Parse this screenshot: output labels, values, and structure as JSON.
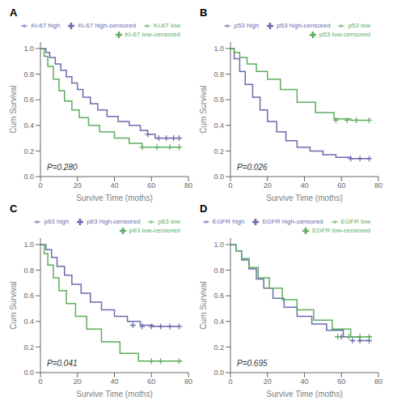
{
  "chart_data": [
    {
      "type": "line",
      "title": "A",
      "annotations": [
        "P=0.280"
      ],
      "xlabel": "Survive Time (moths)",
      "ylabel": "Cum Survival",
      "xlim": [
        0,
        80
      ],
      "ylim": [
        0.0,
        1.05
      ],
      "xticks": [
        0,
        20,
        40,
        60,
        80
      ],
      "yticks": [
        {
          "value": 0.0,
          "label": "0.0"
        },
        0.2,
        0.4,
        0.6,
        0.8,
        {
          "value": 1.0,
          "label": "1.0"
        }
      ],
      "legend": "upper right",
      "grid": false,
      "series": [
        {
          "name": "Ki-67 high",
          "type": "step",
          "color": "#6B6BAF",
          "x": [
            0,
            3,
            5,
            8,
            11,
            14,
            17,
            20,
            23,
            27,
            31,
            36,
            42,
            48,
            54,
            58,
            62,
            75
          ],
          "values": [
            1.0,
            0.97,
            0.93,
            0.88,
            0.83,
            0.78,
            0.73,
            0.68,
            0.62,
            0.57,
            0.52,
            0.47,
            0.43,
            0.4,
            0.36,
            0.33,
            0.3,
            0.3
          ]
        },
        {
          "name": "Ki-67 low",
          "type": "step",
          "color": "#5DAD5D",
          "x": [
            0,
            2,
            4,
            7,
            10,
            13,
            17,
            21,
            26,
            32,
            40,
            48,
            55,
            75
          ],
          "values": [
            1.0,
            0.94,
            0.86,
            0.76,
            0.67,
            0.59,
            0.52,
            0.46,
            0.4,
            0.35,
            0.3,
            0.26,
            0.23,
            0.23
          ]
        },
        {
          "name": "Ki-67 high-censored",
          "type": "scatter",
          "marker": "+",
          "color": "#6B6BAF",
          "x": [
            58,
            64,
            68,
            72,
            75
          ],
          "values": [
            0.33,
            0.3,
            0.3,
            0.3,
            0.3
          ]
        },
        {
          "name": "Ki-67 low-censored",
          "type": "scatter",
          "marker": "+",
          "color": "#5DAD5D",
          "x": [
            55,
            63,
            70,
            75
          ],
          "values": [
            0.23,
            0.23,
            0.23,
            0.23
          ]
        }
      ]
    },
    {
      "type": "line",
      "title": "B",
      "annotations": [
        "P=0.026"
      ],
      "xlabel": "Survive Time (moths)",
      "ylabel": "Cum Survival",
      "xlim": [
        0,
        80
      ],
      "ylim": [
        0.0,
        1.05
      ],
      "xticks": [
        0,
        20,
        40,
        60,
        80
      ],
      "yticks": [
        {
          "value": 0.0,
          "label": "0.0"
        },
        0.2,
        0.4,
        0.6,
        0.8,
        {
          "value": 1.0,
          "label": "1.0"
        }
      ],
      "legend": "upper right",
      "grid": false,
      "series": [
        {
          "name": "p53 high",
          "type": "step",
          "color": "#6B6BAF",
          "x": [
            0,
            2,
            5,
            8,
            12,
            16,
            20,
            25,
            30,
            36,
            43,
            50,
            57,
            65,
            75
          ],
          "values": [
            1.0,
            0.92,
            0.82,
            0.72,
            0.62,
            0.52,
            0.43,
            0.35,
            0.28,
            0.23,
            0.2,
            0.17,
            0.15,
            0.14,
            0.14
          ]
        },
        {
          "name": "p53 low",
          "type": "step",
          "color": "#5DAD5D",
          "x": [
            0,
            2,
            5,
            9,
            14,
            20,
            27,
            36,
            46,
            56,
            65,
            75
          ],
          "values": [
            1.0,
            0.97,
            0.93,
            0.88,
            0.82,
            0.76,
            0.68,
            0.58,
            0.5,
            0.45,
            0.44,
            0.44
          ]
        },
        {
          "name": "p53 high-censored",
          "type": "scatter",
          "marker": "+",
          "color": "#6B6BAF",
          "x": [
            65,
            70,
            75
          ],
          "values": [
            0.14,
            0.14,
            0.14
          ]
        },
        {
          "name": "p53 low-censored",
          "type": "scatter",
          "marker": "+",
          "color": "#5DAD5D",
          "x": [
            57,
            63,
            68,
            75
          ],
          "values": [
            0.44,
            0.44,
            0.44,
            0.44
          ]
        }
      ]
    },
    {
      "type": "line",
      "title": "C",
      "annotations": [
        "P=0.041"
      ],
      "xlabel": "Survive Time (moths)",
      "ylabel": "Cum Survival",
      "xlim": [
        0,
        80
      ],
      "ylim": [
        0.0,
        1.05
      ],
      "xticks": [
        0,
        20,
        40,
        60,
        80
      ],
      "yticks": [
        {
          "value": 0.0,
          "label": "0.0"
        },
        0.2,
        0.4,
        0.6,
        0.8,
        {
          "value": 1.0,
          "label": "1.0"
        }
      ],
      "legend": "upper right",
      "grid": false,
      "series": [
        {
          "name": "p63 high",
          "type": "step",
          "color": "#6B6BAF",
          "x": [
            0,
            3,
            6,
            9,
            13,
            17,
            22,
            27,
            33,
            40,
            47,
            54,
            61,
            75
          ],
          "values": [
            1.0,
            0.96,
            0.9,
            0.83,
            0.76,
            0.69,
            0.62,
            0.55,
            0.49,
            0.44,
            0.4,
            0.37,
            0.36,
            0.36
          ]
        },
        {
          "name": "p63 low",
          "type": "step",
          "color": "#5DAD5D",
          "x": [
            0,
            2,
            4,
            7,
            10,
            14,
            19,
            25,
            33,
            43,
            53,
            75
          ],
          "values": [
            1.0,
            0.93,
            0.84,
            0.74,
            0.64,
            0.54,
            0.44,
            0.34,
            0.24,
            0.15,
            0.09,
            0.09
          ]
        },
        {
          "name": "p63 high-censored",
          "type": "scatter",
          "marker": "+",
          "color": "#6B6BAF",
          "x": [
            50,
            55,
            60,
            65,
            70,
            75
          ],
          "values": [
            0.37,
            0.36,
            0.36,
            0.36,
            0.36,
            0.36
          ]
        },
        {
          "name": "p63 low-censored",
          "type": "scatter",
          "marker": "+",
          "color": "#5DAD5D",
          "x": [
            60,
            65,
            75
          ],
          "values": [
            0.09,
            0.09,
            0.09
          ]
        }
      ]
    },
    {
      "type": "line",
      "title": "D",
      "annotations": [
        "P=0.695"
      ],
      "xlabel": "Survive Time (moths)",
      "ylabel": "Cum Survival",
      "xlim": [
        0,
        80
      ],
      "ylim": [
        0.0,
        1.05
      ],
      "xticks": [
        0,
        20,
        40,
        60,
        80
      ],
      "yticks": [
        {
          "value": 0.0,
          "label": "0.0"
        },
        0.2,
        0.4,
        0.6,
        0.8,
        {
          "value": 1.0,
          "label": "1.0"
        }
      ],
      "legend": "upper right",
      "grid": false,
      "series": [
        {
          "name": "EGFR high",
          "type": "step",
          "color": "#6B6BAF",
          "x": [
            0,
            3,
            6,
            10,
            14,
            18,
            23,
            29,
            36,
            44,
            52,
            61,
            70,
            75
          ],
          "values": [
            1.0,
            0.95,
            0.88,
            0.81,
            0.73,
            0.66,
            0.58,
            0.51,
            0.44,
            0.38,
            0.33,
            0.28,
            0.25,
            0.25
          ]
        },
        {
          "name": "EGFR low",
          "type": "step",
          "color": "#5DAD5D",
          "x": [
            0,
            3,
            6,
            10,
            15,
            21,
            28,
            36,
            45,
            55,
            65,
            75
          ],
          "values": [
            1.0,
            0.95,
            0.89,
            0.82,
            0.74,
            0.66,
            0.57,
            0.49,
            0.41,
            0.34,
            0.28,
            0.28
          ]
        },
        {
          "name": "EGFR high-censored",
          "type": "scatter",
          "marker": "+",
          "color": "#6B6BAF",
          "x": [
            60,
            66,
            70,
            75
          ],
          "values": [
            0.28,
            0.25,
            0.25,
            0.25
          ]
        },
        {
          "name": "EGFR low-censored",
          "type": "scatter",
          "marker": "+",
          "color": "#5DAD5D",
          "x": [
            58,
            64,
            70,
            75
          ],
          "values": [
            0.28,
            0.28,
            0.28,
            0.28
          ]
        }
      ]
    }
  ]
}
